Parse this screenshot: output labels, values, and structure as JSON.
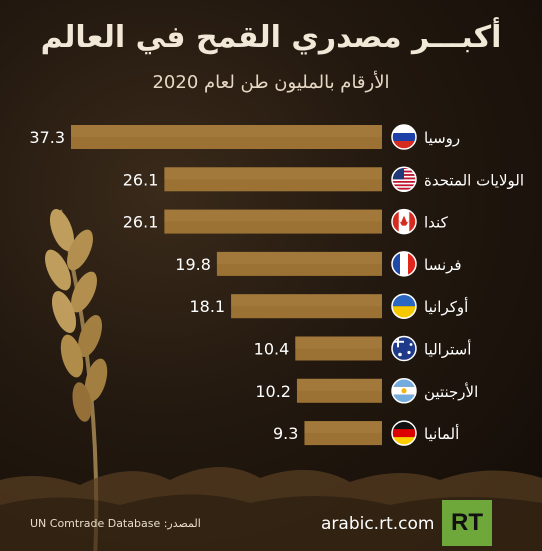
{
  "header": {
    "title": "أكبـــر مصدري القمح في العالم",
    "subtitle": "الأرقام بالمليون طن لعام 2020"
  },
  "chart_data": {
    "type": "bar",
    "orientation": "horizontal",
    "categories": [
      "روسيا",
      "الولايات المتحدة",
      "كندا",
      "فرنسا",
      "أوكرانيا",
      "أستراليا",
      "الأرجنتين",
      "ألمانيا"
    ],
    "values": [
      37.3,
      26.1,
      26.1,
      19.8,
      18.1,
      10.4,
      10.2,
      9.3
    ],
    "value_labels": [
      "37.3",
      "26.1",
      "26.1",
      "19.8",
      "18.1",
      "10.4",
      "10.2",
      "9.3"
    ],
    "flags": [
      "russia-flag-icon",
      "usa-flag-icon",
      "canada-flag-icon",
      "france-flag-icon",
      "ukraine-flag-icon",
      "australia-flag-icon",
      "argentina-flag-icon",
      "germany-flag-icon"
    ],
    "bar_color": "#9b7234",
    "title": "أكبـــر مصدري القمح في العالم",
    "xlim": [
      0,
      37.3
    ]
  },
  "footer": {
    "source": "المصدر: UN Comtrade Database",
    "url": "arabic.rt.com",
    "logo": "RT"
  },
  "colors": {
    "background": "#22180f",
    "text": "#f2e8d8",
    "logo_bg": "#6fa83a"
  }
}
